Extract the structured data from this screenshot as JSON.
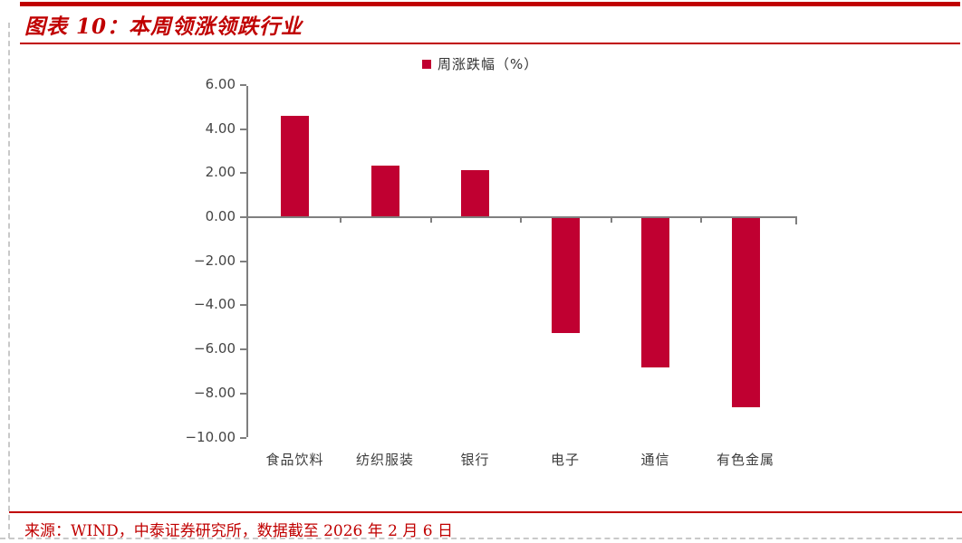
{
  "page": {
    "title": "图表 10：本周领涨领跌行业",
    "source": "来源：WIND，中泰证券研究所，数据截至 2026 年 2 月 6 日"
  },
  "colors": {
    "accent_red": "#C00000",
    "bar_red": "#C00031",
    "axis_gray": "#7F7F7F",
    "label_gray": "#444444"
  },
  "chart_data": {
    "type": "bar",
    "title": "",
    "legend": [
      {
        "label": "周涨跌幅（%）",
        "color": "#C00031"
      }
    ],
    "legend_position": "top-center",
    "categories": [
      "食品饮料",
      "纺织服装",
      "银行",
      "电子",
      "通信",
      "有色金属"
    ],
    "values": [
      4.55,
      2.28,
      2.1,
      -5.2,
      -6.78,
      -8.6
    ],
    "xlabel": "",
    "ylabel": "",
    "ylim": [
      -10,
      6
    ],
    "y_tick_step": 2,
    "y_tick_decimals": 2,
    "grid": false
  }
}
